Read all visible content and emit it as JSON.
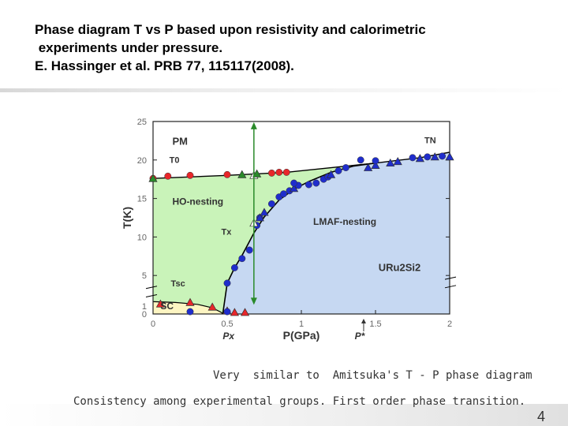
{
  "title": {
    "line1": "Phase diagram T vs P based upon resistivity and calorimetric",
    "line2": " experiments under pressure.",
    "line3": "E. Hassinger et al. PRB 77, 115117(2008)."
  },
  "figure": {
    "ylabel": "T(K)",
    "xlabel": "P(GPa)",
    "yticks": [
      "25",
      "20",
      "15",
      "10",
      "5",
      "1",
      "0"
    ],
    "xticks": [
      "0",
      "0.5",
      "1",
      "1.5",
      "2"
    ],
    "labels": {
      "pm": "PM",
      "t0": "T0",
      "tn": "TN",
      "ho": "HO-nesting",
      "tx": "Tx",
      "lmaf": "LMAF-nesting",
      "tsc": "Tsc",
      "sc": "SC",
      "compound": "URu2Si2",
      "px": "Px",
      "pstar": "P*"
    },
    "colors": {
      "pm": "#ffffff",
      "ho": "#c9f3b9",
      "lmaf": "#c6d8f2",
      "sc": "#fdf5c2",
      "red": "#e8262a",
      "blue": "#1f2dcc",
      "green": "#2a8a2a"
    }
  },
  "chart_data": {
    "type": "scatter",
    "xlabel": "P(GPa)",
    "ylabel": "T(K)",
    "xlim": [
      0,
      2
    ],
    "ylim": [
      0,
      25
    ],
    "series": [
      {
        "points": [
          [
            0.0,
            17.6
          ],
          [
            0.1,
            17.9
          ],
          [
            0.25,
            18.0
          ],
          [
            0.5,
            18.1
          ],
          [
            0.8,
            18.3
          ],
          [
            0.85,
            18.4
          ],
          [
            0.9,
            18.4
          ]
        ]
      },
      {
        "points": [
          [
            0.7,
            11.5
          ],
          [
            0.72,
            12.5
          ],
          [
            0.8,
            14.3
          ],
          [
            0.85,
            15.2
          ],
          [
            0.88,
            15.6
          ],
          [
            0.92,
            16.0
          ],
          [
            0.98,
            16.7
          ],
          [
            1.05,
            16.8
          ],
          [
            1.1,
            17.0
          ],
          [
            1.15,
            17.5
          ],
          [
            1.18,
            17.8
          ],
          [
            1.25,
            18.6
          ],
          [
            1.3,
            19.0
          ],
          [
            1.4,
            20.0
          ]
        ]
      },
      {
        "points": [
          [
            0.05,
            1.3
          ],
          [
            0.25,
            1.5
          ],
          [
            0.4,
            0.9
          ],
          [
            0.5,
            0.4
          ],
          [
            0.55,
            0.2
          ],
          [
            0.62,
            0.2
          ]
        ]
      },
      {
        "points": [
          [
            0.72,
            12.5
          ],
          [
            0.75,
            13.2
          ],
          [
            0.95,
            16.3
          ],
          [
            1.2,
            18.1
          ],
          [
            1.45,
            19.0
          ],
          [
            1.5,
            19.3
          ],
          [
            1.6,
            19.6
          ],
          [
            1.65,
            19.8
          ],
          [
            1.8,
            20.2
          ],
          [
            1.9,
            20.4
          ],
          [
            2.0,
            20.4
          ]
        ]
      },
      {
        "points": [
          [
            0.5,
            4.0
          ],
          [
            0.55,
            6.0
          ],
          [
            0.6,
            7.2
          ],
          [
            0.65,
            8.3
          ],
          [
            0.95,
            17.0
          ],
          [
            1.5,
            19.9
          ],
          [
            1.75,
            20.3
          ],
          [
            1.85,
            20.4
          ],
          [
            1.95,
            20.5
          ]
        ]
      },
      {
        "points": [
          [
            0.25,
            0.3
          ],
          [
            0.5,
            0.3
          ]
        ]
      },
      {
        "points": [
          [
            0.68,
            18.0
          ],
          [
            0.68,
            11.8
          ]
        ]
      },
      {
        "points": [
          [
            0.0,
            17.6
          ],
          [
            0.6,
            18.1
          ],
          [
            0.7,
            18.2
          ]
        ]
      }
    ]
  },
  "captions": {
    "line1": "Very  similar to  Amitsuka's T - P phase diagram",
    "line2": "Consistency among experimental groups. First order phase transition."
  },
  "page_number": "4"
}
